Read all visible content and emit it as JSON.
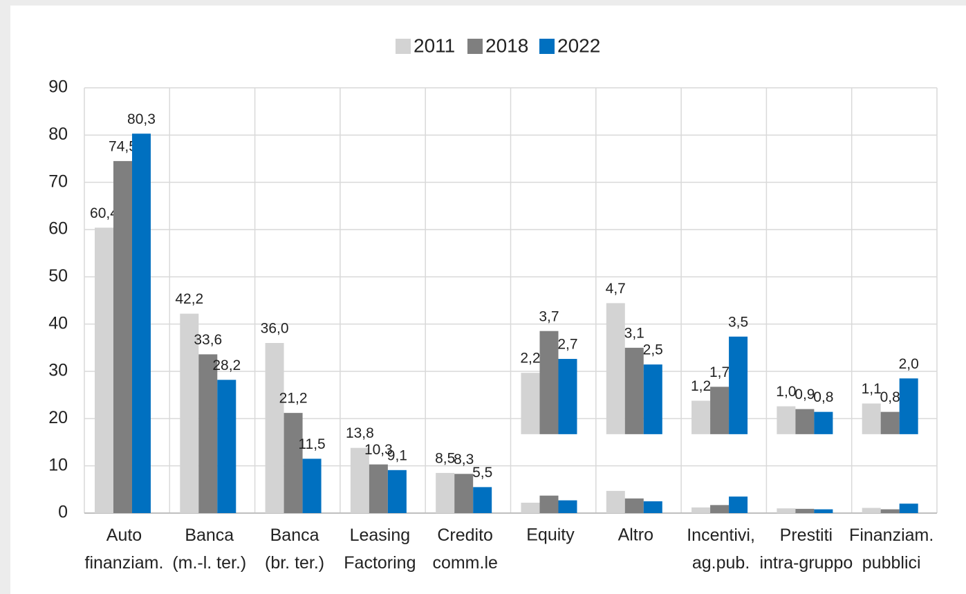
{
  "chart_data": {
    "type": "bar",
    "categories": [
      "Auto\nfinanziam.",
      "Banca\n(m.-l. ter.)",
      "Banca\n(br. ter.)",
      "Leasing\nFactoring",
      "Credito\ncomm.le",
      "Equity",
      "Altro",
      "Incentivi,\nag.pub.",
      "Prestiti\nintra-gruppo",
      "Finanziam.\npubblici"
    ],
    "series": [
      {
        "name": "2011",
        "color": "#d3d3d3",
        "values": [
          60.4,
          42.2,
          36.0,
          13.8,
          8.5,
          2.2,
          4.7,
          1.2,
          1.0,
          1.1
        ],
        "value_labels": [
          "60,4",
          "42,2",
          "36,0",
          "13,8",
          "8,5",
          "2,2",
          "4,7",
          "1,2",
          "1,0",
          "1,1"
        ]
      },
      {
        "name": "2018",
        "color": "#7f7f7f",
        "values": [
          74.5,
          33.6,
          21.2,
          10.3,
          8.3,
          3.7,
          3.1,
          1.7,
          0.9,
          0.8
        ],
        "value_labels": [
          "74,5",
          "33,6",
          "21,2",
          "10,3",
          "8,3",
          "3,7",
          "3,1",
          "1,7",
          "0,9",
          "0,8"
        ]
      },
      {
        "name": "2022",
        "color": "#0070c0",
        "values": [
          80.3,
          28.2,
          11.5,
          9.1,
          5.5,
          2.7,
          2.5,
          3.5,
          0.8,
          2.0
        ],
        "value_labels": [
          "80,3",
          "28,2",
          "11,5",
          "9,1",
          "5,5",
          "2,7",
          "2,5",
          "3,5",
          "0,8",
          "2,0"
        ]
      }
    ],
    "ylim": [
      0,
      90
    ],
    "yticks": [
      0,
      10,
      20,
      30,
      40,
      50,
      60,
      70,
      80,
      90
    ],
    "grid": true,
    "legend": "top",
    "zoom": {
      "from_category": 5,
      "base": 16.7,
      "factor": 5.9
    }
  }
}
